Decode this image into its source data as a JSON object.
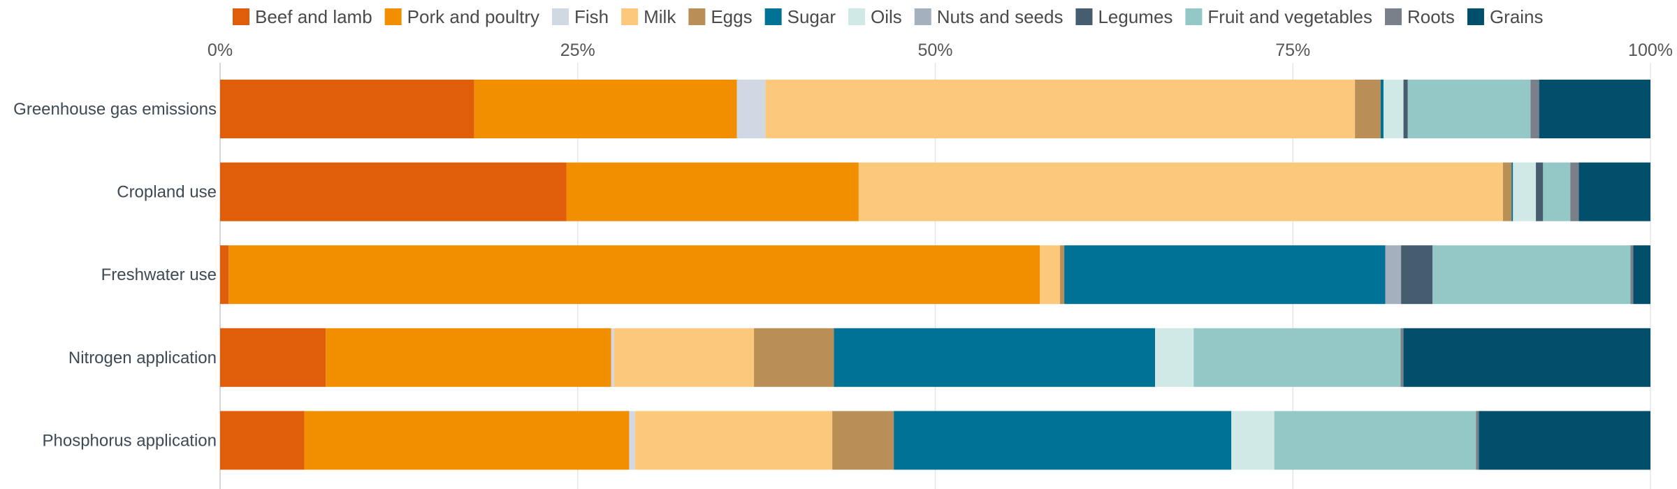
{
  "chart_data": {
    "type": "bar",
    "orientation": "horizontal",
    "stacked": true,
    "normalized": true,
    "title": "",
    "xlabel": "",
    "ylabel": "",
    "xlim": [
      0,
      100
    ],
    "x_ticks": [
      "0%",
      "25%",
      "50%",
      "75%",
      "100%"
    ],
    "x_tick_values": [
      0,
      25,
      50,
      75,
      100
    ],
    "grid": true,
    "legend_position": "top",
    "categories": [
      "Greenhouse gas emissions",
      "Cropland use",
      "Freshwater use",
      "Nitrogen application",
      "Phosphorus application"
    ],
    "series": [
      {
        "name": "Beef and lamb",
        "color": "#e05e0a",
        "values": [
          17.8,
          24.2,
          0.6,
          7.4,
          5.9
        ]
      },
      {
        "name": "Pork and poultry",
        "color": "#f28f00",
        "values": [
          18.4,
          20.4,
          56.6,
          20.0,
          22.7
        ]
      },
      {
        "name": "Fish",
        "color": "#cfd8e3",
        "values": [
          2.0,
          0.0,
          0.0,
          0.2,
          0.4
        ]
      },
      {
        "name": "Milk",
        "color": "#fbc87c",
        "values": [
          41.3,
          45.0,
          1.4,
          9.8,
          13.8
        ]
      },
      {
        "name": "Eggs",
        "color": "#b98f57",
        "values": [
          1.8,
          0.6,
          0.3,
          5.6,
          4.3
        ]
      },
      {
        "name": "Sugar",
        "color": "#007296",
        "values": [
          0.2,
          0.1,
          22.4,
          22.5,
          23.6
        ]
      },
      {
        "name": "Oils",
        "color": "#d0e8e6",
        "values": [
          1.4,
          1.6,
          0.0,
          2.7,
          3.0
        ]
      },
      {
        "name": "Nuts and seeds",
        "color": "#a4b0bd",
        "values": [
          0.0,
          0.0,
          1.1,
          0.0,
          0.0
        ]
      },
      {
        "name": "Legumes",
        "color": "#465d70",
        "values": [
          0.3,
          0.5,
          2.2,
          0.0,
          0.0
        ]
      },
      {
        "name": "Fruit and vegetables",
        "color": "#94c8c6",
        "values": [
          8.6,
          1.9,
          13.8,
          14.5,
          14.1
        ]
      },
      {
        "name": "Roots",
        "color": "#7a808a",
        "values": [
          0.6,
          0.6,
          0.2,
          0.2,
          0.2
        ]
      },
      {
        "name": "Grains",
        "color": "#024f6b",
        "values": [
          7.8,
          5.0,
          1.2,
          17.3,
          12.0
        ]
      }
    ]
  }
}
